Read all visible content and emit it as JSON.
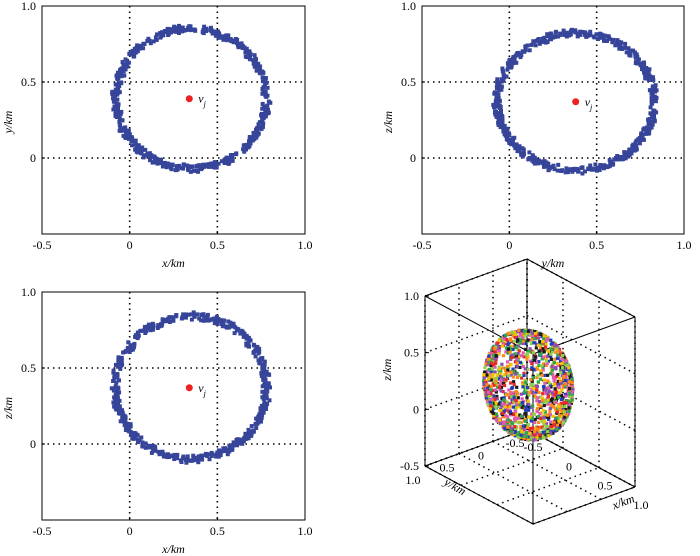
{
  "chart_data": [
    {
      "type": "scatter",
      "panel": "top-left",
      "xlabel": "x/km",
      "ylabel": "y/km",
      "xlim": [
        -0.5,
        1.0
      ],
      "ylim": [
        -0.5,
        1.0
      ],
      "xticks": [
        "-0.5",
        "0",
        "0.5",
        "1.0"
      ],
      "yticks": [
        "0",
        "0.5",
        "1.0"
      ],
      "grid": true,
      "series": [
        {
          "name": "",
          "kind": "ring",
          "center": [
            0.35,
            0.39
          ],
          "rx": 0.43,
          "ry": 0.46,
          "color": "#36459a"
        }
      ],
      "marker": {
        "label": "v",
        "subscript": "j",
        "x": 0.34,
        "y": 0.39,
        "color": "#ee2222"
      }
    },
    {
      "type": "scatter",
      "panel": "top-right",
      "xlabel": "y/km",
      "ylabel": "z/km",
      "xlim": [
        -0.5,
        1.0
      ],
      "ylim": [
        -0.5,
        1.0
      ],
      "xticks": [
        "-0.5",
        "0",
        "0.5",
        "1.0"
      ],
      "yticks": [
        "0",
        "0.5",
        "1.0"
      ],
      "grid": true,
      "series": [
        {
          "name": "",
          "kind": "ring",
          "center": [
            0.38,
            0.37
          ],
          "rx": 0.45,
          "ry": 0.45,
          "color": "#36459a"
        }
      ],
      "marker": {
        "label": "v",
        "subscript": "j",
        "x": 0.38,
        "y": 0.37,
        "color": "#ee2222"
      }
    },
    {
      "type": "scatter",
      "panel": "bottom-left",
      "xlabel": "x/km",
      "ylabel": "z/km",
      "xlim": [
        -0.5,
        1.0
      ],
      "ylim": [
        -0.5,
        1.0
      ],
      "xticks": [
        "-0.5",
        "0",
        "0.5",
        "1.0"
      ],
      "yticks": [
        "0",
        "0.5",
        "1.0"
      ],
      "grid": true,
      "series": [
        {
          "name": "",
          "kind": "ring",
          "center": [
            0.35,
            0.37
          ],
          "rx": 0.43,
          "ry": 0.47,
          "color": "#36459a"
        }
      ],
      "marker": {
        "label": "v",
        "subscript": "j",
        "x": 0.34,
        "y": 0.37,
        "color": "#ee2222"
      }
    },
    {
      "type": "scatter",
      "panel": "bottom-right",
      "projection": "3d",
      "xlabel": "x/km",
      "ylabel": "y/km",
      "zlabel": "z/km",
      "xticks": [
        "-0.5",
        "0",
        "0.5",
        "1.0"
      ],
      "yticks": [
        "1.0",
        "0.5",
        "0",
        "-0.5"
      ],
      "zticks": [
        "1.0",
        "0.5",
        "0",
        "-0.5"
      ],
      "grid": true,
      "series": [
        {
          "name": "",
          "kind": "sphere",
          "center": [
            0.35,
            0.38,
            0.37
          ],
          "radius": 0.45,
          "colors": [
            "#e8262b",
            "#f2c500",
            "#2aa84a",
            "#1f3fbf",
            "#8a4fb0",
            "#1a1a1a",
            "#ff8a1c",
            "#8fd24a",
            "#e05ab5"
          ]
        }
      ]
    }
  ]
}
